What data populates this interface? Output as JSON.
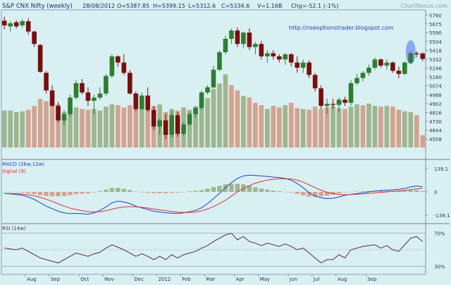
{
  "header": {
    "title": "S&P CNX Nifty (weekly)",
    "date": "28/08/2012",
    "open": "O=5387.85",
    "high": "H=5399.15",
    "low": "L=5312.6",
    "close": "C=5334.6",
    "volume": "V=1.16B",
    "change": "Chg=-52.1 (-1%)",
    "watermark": "ChartNexus.com"
  },
  "annotation": {
    "url": "http://nseoptionstrader.blogspot.com"
  },
  "colors": {
    "background": "#d9f0f3",
    "up_candle": "#2e7d32",
    "down_candle": "#7b0d0d",
    "up_volume": "#9fb58e",
    "down_volume": "#d3a38f",
    "macd_line": "#1f3fbf",
    "signal_line": "#d93030",
    "rsi_line": "#5a2a3a",
    "highlight": "#6f8ff0"
  },
  "chart_data": [
    {
      "type": "candlestick",
      "title": "S&P CNX Nifty (weekly)",
      "y_ticks": [
        "5760",
        "5675",
        "5590",
        "5504",
        "5418",
        "5332",
        "5246",
        "5160",
        "5074",
        "4988",
        "4902",
        "4816",
        "4730",
        "4644",
        "4558"
      ],
      "ylim": [
        4505,
        5810
      ],
      "x_ticks": [
        "Aug",
        "Sep",
        "Oct",
        "Nov",
        "Dec",
        "2012",
        "Feb",
        "Mar",
        "Apr",
        "May",
        "Jun",
        "Jul",
        "Aug",
        "Sep"
      ],
      "ohlc": [
        [
          5705,
          5745,
          5620,
          5660
        ],
        [
          5650,
          5700,
          5600,
          5680
        ],
        [
          5690,
          5710,
          5630,
          5650
        ],
        [
          5660,
          5720,
          5640,
          5700
        ],
        [
          5700,
          5730,
          5570,
          5600
        ],
        [
          5600,
          5610,
          5450,
          5480
        ],
        [
          5470,
          5480,
          5200,
          5210
        ],
        [
          5200,
          5220,
          5000,
          5030
        ],
        [
          5030,
          5080,
          4870,
          4880
        ],
        [
          4880,
          4920,
          4720,
          4740
        ],
        [
          4740,
          4840,
          4700,
          4800
        ],
        [
          4800,
          4990,
          4780,
          4960
        ],
        [
          4960,
          5130,
          4940,
          5100
        ],
        [
          5100,
          5140,
          4990,
          5010
        ],
        [
          5010,
          5060,
          4880,
          4930
        ],
        [
          4930,
          4990,
          4800,
          4960
        ],
        [
          4960,
          5060,
          4940,
          5000
        ],
        [
          5000,
          5190,
          4980,
          5170
        ],
        [
          5170,
          5380,
          5150,
          5360
        ],
        [
          5360,
          5370,
          5260,
          5300
        ],
        [
          5300,
          5380,
          5180,
          5200
        ],
        [
          5200,
          5230,
          4990,
          5000
        ],
        [
          5000,
          5020,
          4830,
          4850
        ],
        [
          4850,
          5010,
          4840,
          4980
        ],
        [
          4980,
          5060,
          4820,
          4840
        ],
        [
          4840,
          4880,
          4650,
          4680
        ],
        [
          4680,
          4760,
          4600,
          4740
        ],
        [
          4740,
          4800,
          4560,
          4600
        ],
        [
          4600,
          4830,
          4570,
          4790
        ],
        [
          4790,
          4820,
          4580,
          4610
        ],
        [
          4610,
          4720,
          4590,
          4700
        ],
        [
          4700,
          4820,
          4690,
          4800
        ],
        [
          4800,
          4880,
          4760,
          4860
        ],
        [
          4860,
          5030,
          4840,
          5010
        ],
        [
          5010,
          5080,
          4990,
          5060
        ],
        [
          5060,
          5270,
          5050,
          5230
        ],
        [
          5230,
          5420,
          5220,
          5400
        ],
        [
          5400,
          5560,
          5380,
          5530
        ],
        [
          5530,
          5630,
          5480,
          5610
        ],
        [
          5610,
          5640,
          5450,
          5480
        ],
        [
          5480,
          5600,
          5440,
          5590
        ],
        [
          5590,
          5630,
          5420,
          5450
        ],
        [
          5450,
          5500,
          5380,
          5480
        ],
        [
          5480,
          5510,
          5330,
          5360
        ],
        [
          5360,
          5420,
          5300,
          5390
        ],
        [
          5390,
          5420,
          5330,
          5360
        ],
        [
          5360,
          5380,
          5300,
          5330
        ],
        [
          5330,
          5390,
          5280,
          5380
        ],
        [
          5380,
          5390,
          5260,
          5300
        ],
        [
          5300,
          5360,
          5200,
          5250
        ],
        [
          5250,
          5330,
          5200,
          5300
        ],
        [
          5300,
          5320,
          5150,
          5180
        ],
        [
          5180,
          5200,
          5020,
          5050
        ],
        [
          5050,
          5080,
          4850,
          4880
        ],
        [
          4880,
          4950,
          4800,
          4900
        ],
        [
          4900,
          4950,
          4850,
          4890
        ],
        [
          4890,
          4960,
          4820,
          4940
        ],
        [
          4940,
          4970,
          4880,
          4910
        ],
        [
          4910,
          5130,
          4880,
          5100
        ],
        [
          5100,
          5190,
          5080,
          5150
        ],
        [
          5150,
          5220,
          5120,
          5200
        ],
        [
          5200,
          5280,
          5170,
          5250
        ],
        [
          5250,
          5350,
          5230,
          5330
        ],
        [
          5330,
          5340,
          5250,
          5270
        ],
        [
          5270,
          5330,
          5230,
          5300
        ],
        [
          5300,
          5310,
          5200,
          5220
        ],
        [
          5220,
          5260,
          5150,
          5190
        ],
        [
          5190,
          5310,
          5180,
          5300
        ],
        [
          5300,
          5410,
          5290,
          5390
        ],
        [
          5390,
          5410,
          5350,
          5380
        ],
        [
          5387.85,
          5399.15,
          5312.6,
          5334.6
        ]
      ],
      "volume": [
        [
          4.8,
          "up"
        ],
        [
          4.8,
          "up"
        ],
        [
          4.6,
          "up"
        ],
        [
          4.7,
          "up"
        ],
        [
          4.9,
          "down"
        ],
        [
          5.4,
          "down"
        ],
        [
          6.3,
          "down"
        ],
        [
          6.0,
          "down"
        ],
        [
          6.4,
          "down"
        ],
        [
          5.6,
          "down"
        ],
        [
          4.6,
          "up"
        ],
        [
          5.0,
          "up"
        ],
        [
          5.2,
          "up"
        ],
        [
          5.0,
          "down"
        ],
        [
          4.9,
          "down"
        ],
        [
          5.0,
          "up"
        ],
        [
          4.8,
          "up"
        ],
        [
          5.3,
          "up"
        ],
        [
          5.6,
          "up"
        ],
        [
          5.5,
          "down"
        ],
        [
          5.2,
          "down"
        ],
        [
          5.5,
          "down"
        ],
        [
          5.4,
          "down"
        ],
        [
          5.1,
          "up"
        ],
        [
          5.0,
          "down"
        ],
        [
          5.4,
          "down"
        ],
        [
          5.6,
          "up"
        ],
        [
          4.6,
          "down"
        ],
        [
          5.0,
          "up"
        ],
        [
          4.8,
          "down"
        ],
        [
          5.2,
          "up"
        ],
        [
          4.9,
          "up"
        ],
        [
          5.3,
          "up"
        ],
        [
          5.8,
          "up"
        ],
        [
          6.4,
          "up"
        ],
        [
          7.6,
          "up"
        ],
        [
          8.3,
          "up"
        ],
        [
          9.5,
          "up"
        ],
        [
          8.1,
          "down"
        ],
        [
          7.4,
          "down"
        ],
        [
          6.7,
          "up"
        ],
        [
          6.5,
          "down"
        ],
        [
          5.8,
          "down"
        ],
        [
          5.5,
          "down"
        ],
        [
          5.0,
          "up"
        ],
        [
          5.4,
          "down"
        ],
        [
          5.2,
          "down"
        ],
        [
          5.5,
          "up"
        ],
        [
          5.8,
          "down"
        ],
        [
          5.1,
          "down"
        ],
        [
          5.0,
          "up"
        ],
        [
          4.9,
          "down"
        ],
        [
          5.3,
          "down"
        ],
        [
          5.0,
          "down"
        ],
        [
          5.2,
          "down"
        ],
        [
          5.4,
          "up"
        ],
        [
          5.1,
          "up"
        ],
        [
          5.0,
          "down"
        ],
        [
          5.3,
          "up"
        ],
        [
          5.6,
          "up"
        ],
        [
          5.5,
          "down"
        ],
        [
          5.7,
          "up"
        ],
        [
          5.4,
          "up"
        ],
        [
          5.3,
          "down"
        ],
        [
          5.4,
          "up"
        ],
        [
          5.3,
          "down"
        ],
        [
          4.9,
          "down"
        ],
        [
          4.7,
          "up"
        ],
        [
          4.6,
          "up"
        ],
        [
          4.2,
          "down"
        ],
        [
          1.6,
          "down"
        ]
      ]
    },
    {
      "type": "line",
      "title": "MACD (26w,12w)",
      "series": [
        {
          "name": "MACD (26w,12w)",
          "values": [
            -10,
            -12,
            -15,
            -20,
            -30,
            -45,
            -65,
            -85,
            -100,
            -115,
            -125,
            -130,
            -128,
            -130,
            -133,
            -125,
            -110,
            -90,
            -65,
            -55,
            -60,
            -70,
            -85,
            -95,
            -105,
            -115,
            -120,
            -125,
            -127,
            -128,
            -125,
            -118,
            -110,
            -95,
            -70,
            -40,
            -10,
            25,
            55,
            80,
            95,
            100,
            98,
            95,
            92,
            88,
            85,
            80,
            70,
            50,
            25,
            -5,
            -25,
            -35,
            -40,
            -38,
            -30,
            -20,
            -15,
            -10,
            -5,
            0,
            5,
            8,
            10,
            12,
            15,
            20,
            30,
            35,
            30
          ]
        },
        {
          "name": "Signal (9)",
          "values": [
            -10,
            -10,
            -11,
            -13,
            -17,
            -23,
            -32,
            -44,
            -57,
            -71,
            -85,
            -97,
            -105,
            -112,
            -118,
            -120,
            -118,
            -112,
            -103,
            -95,
            -90,
            -88,
            -89,
            -92,
            -96,
            -102,
            -107,
            -112,
            -117,
            -121,
            -123,
            -123,
            -120,
            -113,
            -102,
            -88,
            -70,
            -50,
            -25,
            0,
            20,
            37,
            52,
            62,
            70,
            75,
            78,
            79,
            77,
            70,
            58,
            42,
            25,
            10,
            -2,
            -10,
            -15,
            -17,
            -16,
            -14,
            -12,
            -9,
            -6,
            -3,
            0,
            3,
            6,
            9,
            13,
            18,
            22
          ]
        }
      ],
      "ytick_labels": [
        "139.1",
        "0",
        "-139.1"
      ],
      "ylim": [
        -185,
        185
      ]
    },
    {
      "type": "line",
      "title": "RSI (14w)",
      "series": [
        {
          "name": "RSI (14w)",
          "values": [
            52,
            51,
            50,
            52,
            48,
            44,
            40,
            38,
            36,
            34,
            38,
            42,
            46,
            44,
            42,
            45,
            47,
            52,
            56,
            53,
            50,
            46,
            42,
            45,
            42,
            38,
            42,
            38,
            44,
            40,
            44,
            46,
            48,
            52,
            55,
            60,
            64,
            68,
            70,
            62,
            66,
            60,
            58,
            55,
            58,
            56,
            54,
            57,
            54,
            50,
            52,
            46,
            40,
            34,
            38,
            38,
            44,
            40,
            50,
            52,
            54,
            55,
            56,
            52,
            55,
            50,
            48,
            56,
            64,
            66,
            60
          ]
        }
      ],
      "ytick_labels": [
        "70%",
        "30%"
      ],
      "ylim": [
        20,
        80
      ]
    }
  ]
}
